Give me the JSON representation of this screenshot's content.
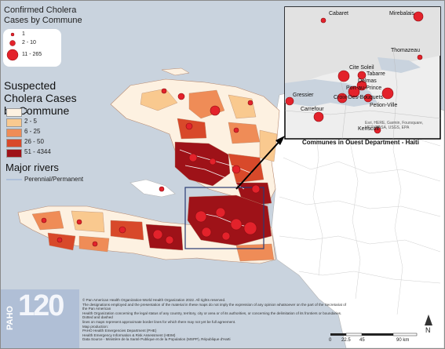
{
  "confirmed_legend": {
    "title": "Confirmed Cholera Cases by Commune",
    "items": [
      "1",
      "2 - 10",
      "11 - 265"
    ]
  },
  "suspected_legend": {
    "title": "Suspected Cholera Cases by Commune",
    "items": [
      {
        "label": "1",
        "color": "#fdf1e1"
      },
      {
        "label": "2 - 5",
        "color": "#f9c98f"
      },
      {
        "label": "6 - 25",
        "color": "#ef8c57"
      },
      {
        "label": "26 - 50",
        "color": "#d8492a"
      },
      {
        "label": "51 - 4344",
        "color": "#9e1218"
      }
    ]
  },
  "rivers_legend": {
    "title": "Major rivers",
    "item": "Perennial/Permanent"
  },
  "inset": {
    "caption": "Communes in Ouest Department - Haiti",
    "credit": "Esri, HERE, Garmin, Foursquare, METI/NASA, USGS, EPA",
    "places": [
      "Cabaret",
      "Mirebalais",
      "Thomazeau",
      "Cite Soleil",
      "Tabarre",
      "Delmas",
      "Gressier",
      "Carrefour",
      "Port-au-Prince",
      "Croix-Des-Bouquets",
      "Petion-Ville",
      "Kenscoff"
    ]
  },
  "disclaimer": [
    "© Pan American Health Organization-World Health Organization 2022. All rights reserved.",
    "The designations employed and the presentation of the material in these maps do not imply the expression of any opinion whatsoever on the part of the Secretariat of the Pan American",
    "Health Organization concerning the legal status of any country, territory, city or area or of its authorities, or concerning the delimitation of its frontiers or boundaries. Dotted and dashed",
    "lines on maps represent approximate border lines for which there may not yet be full agreement.",
    "Map production:",
    "PAHO Health Emergencies Department (PHE)",
    "Health Emergency Information & Risk Assessment (HEIM)",
    "Data Source - Ministère de la Santé Publique et de la Population (MSPP), République d'Haïti"
  ],
  "scale": {
    "labels": [
      "0",
      "22.5",
      "45",
      "90 km"
    ]
  },
  "north": "N",
  "logo": {
    "org": "PAHO",
    "number": "120"
  }
}
